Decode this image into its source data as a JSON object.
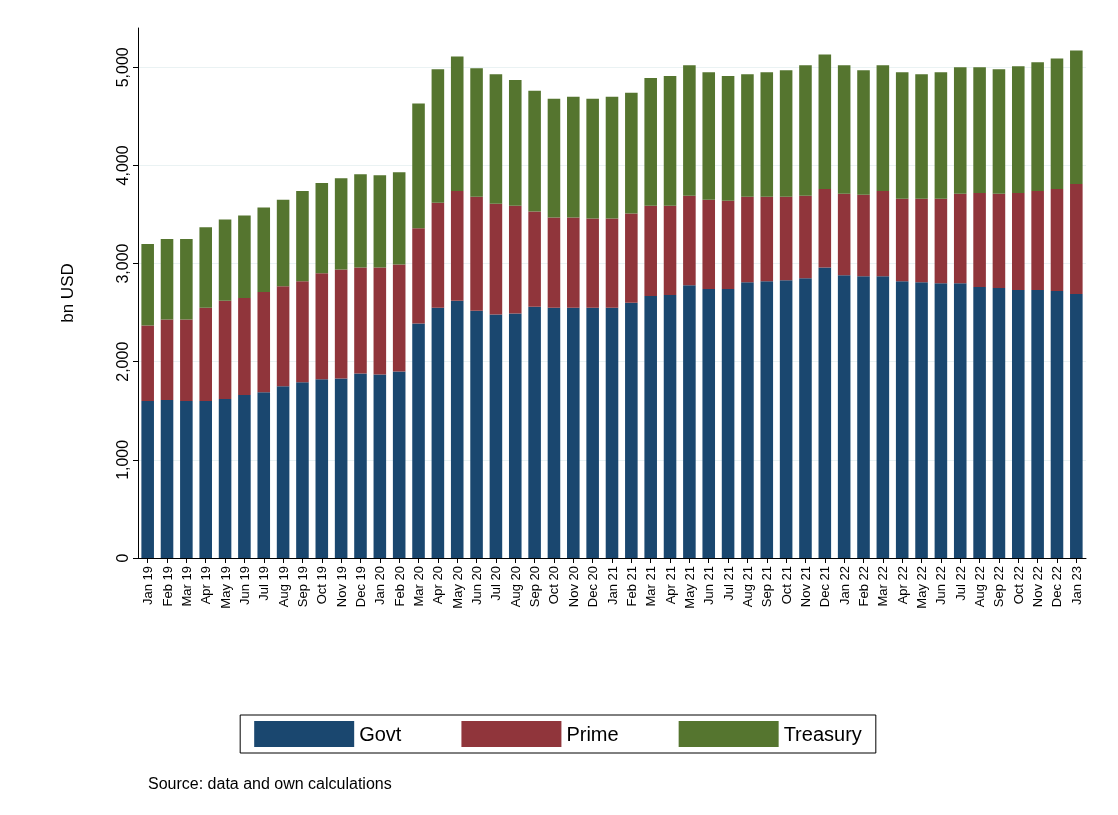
{
  "chart_data": {
    "type": "bar",
    "stacked": true,
    "ylabel": "bn USD",
    "annotations": [
      "Source: data and own calculations"
    ],
    "categories": [
      "Jan 19",
      "Feb 19",
      "Mar 19",
      "Apr 19",
      "May 19",
      "Jun 19",
      "Jul 19",
      "Aug 19",
      "Sep 19",
      "Oct 19",
      "Nov 19",
      "Dec 19",
      "Jan 20",
      "Feb 20",
      "Mar 20",
      "Apr 20",
      "May 20",
      "Jun 20",
      "Jul 20",
      "Aug 20",
      "Sep 20",
      "Oct 20",
      "Nov 20",
      "Dec 20",
      "Jan 21",
      "Feb 21",
      "Mar 21",
      "Apr 21",
      "May 21",
      "Jun 21",
      "Jul 21",
      "Aug 21",
      "Sep 21",
      "Oct 21",
      "Nov 21",
      "Dec 21",
      "Jan 22",
      "Feb 22",
      "Mar 22",
      "Apr 22",
      "May 22",
      "Jun 22",
      "Jul 22",
      "Aug 22",
      "Sep 22",
      "Oct 22",
      "Nov 22",
      "Dec 22",
      "Jan 23"
    ],
    "series": [
      {
        "name": "Govt",
        "color": "#1a476f",
        "values": [
          1600,
          1610,
          1600,
          1600,
          1620,
          1660,
          1690,
          1750,
          1790,
          1820,
          1830,
          1880,
          1870,
          1900,
          2390,
          2550,
          2620,
          2520,
          2480,
          2490,
          2560,
          2550,
          2550,
          2550,
          2550,
          2600,
          2670,
          2680,
          2780,
          2740,
          2740,
          2810,
          2820,
          2830,
          2850,
          2960,
          2880,
          2870,
          2870,
          2820,
          2810,
          2800,
          2800,
          2760,
          2750,
          2730,
          2730,
          2720,
          2690
        ]
      },
      {
        "name": "Prime",
        "color": "#90353b",
        "values": [
          770,
          820,
          830,
          950,
          1000,
          990,
          1020,
          1020,
          1030,
          1080,
          1110,
          1080,
          1090,
          1090,
          970,
          1070,
          1120,
          1160,
          1130,
          1100,
          970,
          920,
          920,
          910,
          910,
          910,
          920,
          910,
          910,
          910,
          900,
          870,
          860,
          850,
          840,
          800,
          830,
          830,
          870,
          840,
          850,
          860,
          910,
          960,
          960,
          990,
          1010,
          1040,
          1120
        ]
      },
      {
        "name": "Treasury",
        "color": "#55752f",
        "values": [
          830,
          820,
          820,
          820,
          830,
          840,
          860,
          880,
          920,
          920,
          930,
          950,
          940,
          940,
          1270,
          1360,
          1370,
          1310,
          1320,
          1280,
          1230,
          1210,
          1230,
          1220,
          1240,
          1230,
          1300,
          1320,
          1330,
          1300,
          1270,
          1250,
          1270,
          1290,
          1330,
          1370,
          1310,
          1270,
          1280,
          1290,
          1270,
          1290,
          1290,
          1280,
          1270,
          1290,
          1310,
          1330,
          1360
        ]
      }
    ],
    "ylim": [
      0,
      5400
    ],
    "yticks": [
      0,
      {
        "value": 1000,
        "label": "1,000"
      },
      {
        "value": 2000,
        "label": "2,000"
      },
      {
        "value": 3000,
        "label": "3,000"
      },
      {
        "value": 4000,
        "label": "4,000"
      },
      {
        "value": 5000,
        "label": "5,000"
      }
    ],
    "grid": "y",
    "legend": "bottom"
  }
}
